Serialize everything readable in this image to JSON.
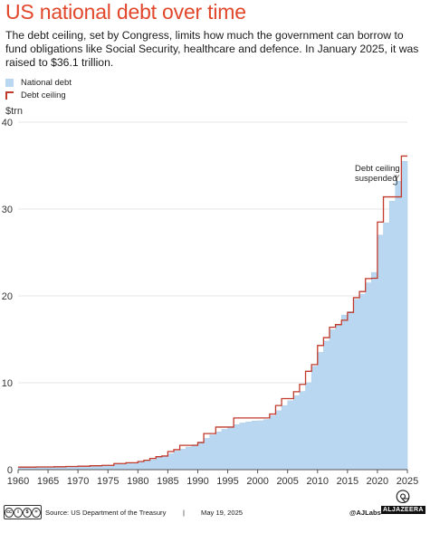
{
  "title": "US national debt over time",
  "subtitle": "The debt ceiling, set by Congress, limits how much the government can borrow to fund obligations like Social Security, healthcare and defence. In January 2025, it was raised to $36.1 trillion.",
  "legend": {
    "debt": "National debt",
    "ceiling": "Debt ceiling"
  },
  "colors": {
    "debt": "#b9d7f0",
    "ceiling": "#c0392b",
    "title": "#e1472b"
  },
  "footer": {
    "source": "Source: US Department of the Treasury",
    "separator": "|",
    "date": "May 19, 2025",
    "handle": "@AJLabs",
    "brand": "ALJAZEERA"
  },
  "chart_data": {
    "type": "area",
    "title": "US national debt over time",
    "ylabel": "$trn",
    "xlabel": "",
    "xlim": [
      1960,
      2025
    ],
    "ylim": [
      0,
      40
    ],
    "x_ticks": [
      1960,
      1965,
      1970,
      1975,
      1980,
      1985,
      1990,
      1995,
      2000,
      2005,
      2010,
      2015,
      2020,
      2025
    ],
    "y_ticks": [
      0,
      10,
      20,
      30,
      40
    ],
    "grid": true,
    "legend": "top-left",
    "annotations": [
      {
        "text": [
          "Debt ceiling",
          "suspended"
        ],
        "x": 2023.5,
        "y": 33.5
      }
    ],
    "series": [
      {
        "name": "National debt",
        "style": "step-area",
        "points": [
          [
            1960,
            0.29
          ],
          [
            1963,
            0.31
          ],
          [
            1966,
            0.32
          ],
          [
            1968,
            0.35
          ],
          [
            1970,
            0.37
          ],
          [
            1972,
            0.43
          ],
          [
            1974,
            0.48
          ],
          [
            1976,
            0.62
          ],
          [
            1978,
            0.77
          ],
          [
            1980,
            0.91
          ],
          [
            1981,
            1.0
          ],
          [
            1982,
            1.14
          ],
          [
            1983,
            1.38
          ],
          [
            1984,
            1.57
          ],
          [
            1985,
            1.82
          ],
          [
            1986,
            2.13
          ],
          [
            1987,
            2.35
          ],
          [
            1988,
            2.6
          ],
          [
            1989,
            2.86
          ],
          [
            1990,
            3.2
          ],
          [
            1991,
            3.6
          ],
          [
            1992,
            4.0
          ],
          [
            1993,
            4.35
          ],
          [
            1994,
            4.64
          ],
          [
            1995,
            4.92
          ],
          [
            1996,
            5.18
          ],
          [
            1997,
            5.37
          ],
          [
            1998,
            5.48
          ],
          [
            1999,
            5.6
          ],
          [
            2000,
            5.63
          ],
          [
            2001,
            5.77
          ],
          [
            2002,
            6.2
          ],
          [
            2003,
            6.78
          ],
          [
            2004,
            7.38
          ],
          [
            2005,
            7.93
          ],
          [
            2006,
            8.5
          ],
          [
            2007,
            9.0
          ],
          [
            2008,
            10.0
          ],
          [
            2009,
            11.9
          ],
          [
            2010,
            13.5
          ],
          [
            2011,
            14.8
          ],
          [
            2012,
            16.1
          ],
          [
            2013,
            16.7
          ],
          [
            2014,
            17.8
          ],
          [
            2015,
            18.2
          ],
          [
            2016,
            19.6
          ],
          [
            2017,
            20.2
          ],
          [
            2018,
            21.5
          ],
          [
            2019,
            22.7
          ],
          [
            2020,
            27.0
          ],
          [
            2021,
            28.4
          ],
          [
            2022,
            30.9
          ],
          [
            2023,
            33.2
          ],
          [
            2024,
            35.5
          ],
          [
            2025,
            35.5
          ]
        ]
      },
      {
        "name": "Debt ceiling",
        "style": "step-line",
        "points": [
          [
            1960,
            0.295
          ],
          [
            1963,
            0.309
          ],
          [
            1966,
            0.33
          ],
          [
            1968,
            0.365
          ],
          [
            1970,
            0.395
          ],
          [
            1972,
            0.45
          ],
          [
            1974,
            0.495
          ],
          [
            1976,
            0.7
          ],
          [
            1978,
            0.798
          ],
          [
            1980,
            0.935
          ],
          [
            1981,
            1.079
          ],
          [
            1982,
            1.29
          ],
          [
            1983,
            1.49
          ],
          [
            1984,
            1.57
          ],
          [
            1985,
            2.08
          ],
          [
            1986,
            2.3
          ],
          [
            1987,
            2.8
          ],
          [
            1990,
            3.12
          ],
          [
            1991,
            4.15
          ],
          [
            1993,
            4.9
          ],
          [
            1996,
            5.95
          ],
          [
            2002,
            6.4
          ],
          [
            2003,
            7.38
          ],
          [
            2004,
            8.18
          ],
          [
            2006,
            8.97
          ],
          [
            2007,
            9.82
          ],
          [
            2008,
            11.32
          ],
          [
            2009,
            12.1
          ],
          [
            2010,
            14.29
          ],
          [
            2011,
            15.2
          ],
          [
            2012,
            16.39
          ],
          [
            2013,
            16.7
          ],
          [
            2014,
            17.2
          ],
          [
            2015,
            18.1
          ],
          [
            2016,
            19.8
          ],
          [
            2017,
            20.5
          ],
          [
            2018,
            21.99
          ],
          [
            2019,
            22.03
          ],
          [
            2020,
            28.5
          ],
          [
            2021,
            31.4
          ],
          [
            2023,
            31.4
          ],
          [
            2023.5,
            31.4
          ],
          [
            2024,
            36.1
          ],
          [
            2025,
            36.1
          ]
        ]
      }
    ]
  }
}
